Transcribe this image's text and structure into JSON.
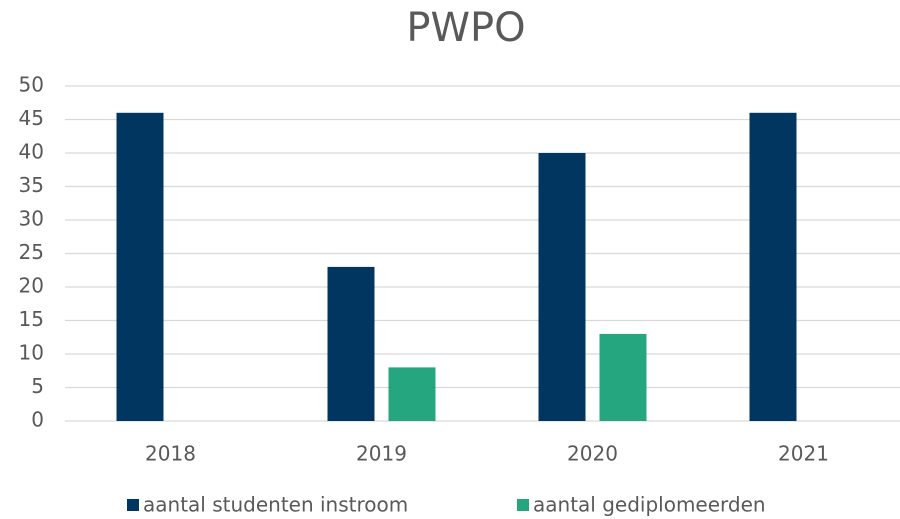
{
  "chart_data": {
    "type": "bar",
    "title": "PWPO",
    "categories": [
      "2018",
      "2019",
      "2020",
      "2021"
    ],
    "series": [
      {
        "name": "aantal studenten instroom",
        "color": "#003660",
        "values": [
          46,
          23,
          40,
          46
        ]
      },
      {
        "name": "aantal gediplomeerden",
        "color": "#26a67f",
        "values": [
          null,
          8,
          13,
          null
        ]
      }
    ],
    "ylim": [
      0,
      50
    ],
    "yticks": [
      0,
      5,
      10,
      15,
      20,
      25,
      30,
      35,
      40,
      45,
      50
    ],
    "grid": true,
    "legend": "bottom"
  }
}
